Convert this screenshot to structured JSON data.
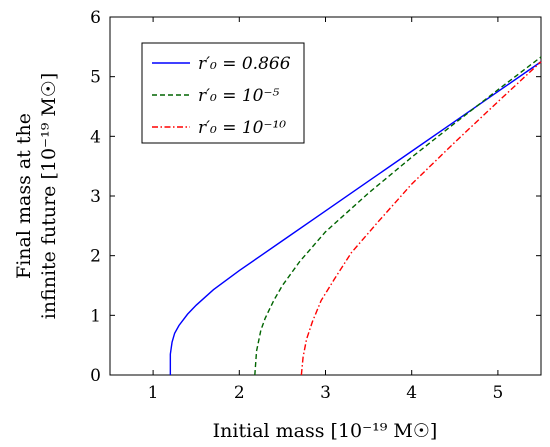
{
  "chart_data": {
    "type": "line",
    "xlabel": "Initial mass [10⁻¹⁹ M☉]",
    "ylabel_lines": [
      "Final mass at the",
      "infinite future [10⁻¹⁹ M☉]"
    ],
    "xlim": [
      0.5,
      5.5
    ],
    "ylim": [
      0,
      6
    ],
    "xticks": [
      1,
      2,
      3,
      4,
      5
    ],
    "yticks": [
      0,
      1,
      2,
      3,
      4,
      5,
      6
    ],
    "grid": false,
    "legend_position": "top-left",
    "series": [
      {
        "name": "r′₀ = 0.866",
        "color": "#0000ff",
        "dash": "solid",
        "x": [
          1.2,
          1.2,
          1.22,
          1.25,
          1.3,
          1.4,
          1.5,
          1.7,
          2.0,
          2.5,
          3.0,
          3.5,
          4.0,
          4.5,
          5.0,
          5.5
        ],
        "y": [
          0,
          0.35,
          0.55,
          0.7,
          0.83,
          1.02,
          1.17,
          1.43,
          1.75,
          2.25,
          2.75,
          3.25,
          3.75,
          4.25,
          4.75,
          5.25
        ]
      },
      {
        "name": "r′₀ = 10⁻⁵",
        "color": "#006400",
        "dash": "dashed",
        "x": [
          2.18,
          2.2,
          2.25,
          2.3,
          2.4,
          2.5,
          2.7,
          3.0,
          3.5,
          4.0,
          4.5,
          5.0,
          5.5
        ],
        "y": [
          0,
          0.4,
          0.75,
          0.95,
          1.25,
          1.5,
          1.9,
          2.4,
          3.05,
          3.65,
          4.22,
          4.78,
          5.33
        ]
      },
      {
        "name": "r′₀ = 10⁻¹⁰",
        "color": "#ff0000",
        "dash": "dashdot",
        "x": [
          2.72,
          2.74,
          2.78,
          2.85,
          2.95,
          3.1,
          3.3,
          3.6,
          4.0,
          4.5,
          5.0,
          5.5
        ],
        "y": [
          0,
          0.3,
          0.6,
          0.9,
          1.25,
          1.6,
          2.05,
          2.55,
          3.2,
          3.9,
          4.58,
          5.25
        ]
      }
    ]
  }
}
